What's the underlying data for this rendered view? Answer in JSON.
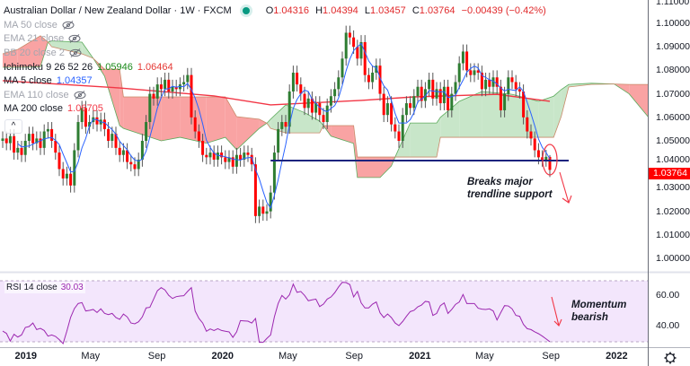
{
  "header": {
    "title": "Australian Dollar / New Zealand Dollar · 1W · FXCM",
    "ohlc": {
      "o_label": "O",
      "o": "1.04316",
      "h_label": "H",
      "h": "1.04394",
      "l_label": "L",
      "l": "1.03457",
      "c_label": "C",
      "c": "1.03764",
      "change": "−0.00439 (−0.42%)"
    }
  },
  "indicators": [
    {
      "name": "MA 50 close",
      "visible": false
    },
    {
      "name": "EMA 21 close",
      "visible": false
    },
    {
      "name": "BB 20 close 2",
      "visible": false
    },
    {
      "name": "Ichimoku 9 26 52 26",
      "visible": true,
      "values": [
        {
          "v": "1.05946",
          "color": "#1b8a1b"
        },
        {
          "v": "1.06464",
          "color": "#e53935"
        }
      ]
    },
    {
      "name": "MA 5 close",
      "visible": true,
      "values": [
        {
          "v": "1.04357",
          "color": "#2962ff"
        }
      ]
    },
    {
      "name": "EMA 110 close",
      "visible": false
    },
    {
      "name": "MA 200 close",
      "visible": true,
      "values": [
        {
          "v": "1.06705",
          "color": "#f23645"
        }
      ]
    }
  ],
  "collapse_label": "^",
  "price_axis": {
    "labels": [
      "1.11000",
      "1.10000",
      "1.09000",
      "1.08000",
      "1.07000",
      "1.06000",
      "1.05000",
      "1.04000",
      "1.03000",
      "1.02000",
      "1.01000",
      "1.00000"
    ],
    "current": "1.03764"
  },
  "rsi_axis": {
    "labels": [
      "60.00",
      "40.00"
    ]
  },
  "time_axis": [
    {
      "label": "2019",
      "date": "2019-01-01",
      "year": true
    },
    {
      "label": "May",
      "date": "2019-05-01"
    },
    {
      "label": "Sep",
      "date": "2019-09-01"
    },
    {
      "label": "2020",
      "date": "2020-01-01",
      "year": true
    },
    {
      "label": "May",
      "date": "2020-05-01"
    },
    {
      "label": "Sep",
      "date": "2020-09-01"
    },
    {
      "label": "2021",
      "date": "2021-01-01",
      "year": true
    },
    {
      "label": "May",
      "date": "2021-05-01"
    },
    {
      "label": "Sep",
      "date": "2021-09-01"
    },
    {
      "label": "2022",
      "date": "2022-01-01",
      "year": true
    }
  ],
  "rsi_legend": {
    "name": "RSI 14 close",
    "value": "30.03"
  },
  "annotations": {
    "trendline_note": [
      "Breaks major",
      "trendline support"
    ],
    "rsi_note": [
      "Momentum",
      "bearish"
    ]
  },
  "colors": {
    "up": "#2e7d32",
    "down": "#ff0000",
    "ma5": "#2962ff",
    "ma200": "#f23645",
    "cloud_bull": "#c8e6c9",
    "cloud_bear": "#f9a3a3",
    "trendline": "#1a237e",
    "rsi": "#9c27b0",
    "rsi_band": "#f3e6fc",
    "annotation": "#f23645"
  },
  "chart_data": [
    {
      "type": "candlestick",
      "symbol": "AUDNZD",
      "interval": "1W",
      "first_bar": "2018-11-19",
      "ylim": [
        0.995,
        1.111
      ],
      "close": [
        1.051,
        1.049,
        1.052,
        1.045,
        1.047,
        1.044,
        1.05,
        1.053,
        1.049,
        1.051,
        1.047,
        1.054,
        1.055,
        1.05,
        1.045,
        1.038,
        1.034,
        1.036,
        1.031,
        1.046,
        1.058,
        1.064,
        1.056,
        1.058,
        1.06,
        1.057,
        1.059,
        1.055,
        1.05,
        1.053,
        1.047,
        1.044,
        1.046,
        1.041,
        1.04,
        1.038,
        1.042,
        1.05,
        1.058,
        1.07,
        1.068,
        1.074,
        1.072,
        1.076,
        1.071,
        1.073,
        1.072,
        1.074,
        1.075,
        1.078,
        1.06,
        1.054,
        1.05,
        1.044,
        1.043,
        1.045,
        1.042,
        1.045,
        1.043,
        1.041,
        1.043,
        1.039,
        1.044,
        1.042,
        1.045,
        1.044,
        1.04,
        1.018,
        1.022,
        1.019,
        1.02,
        1.028,
        1.045,
        1.055,
        1.058,
        1.056,
        1.071,
        1.079,
        1.074,
        1.07,
        1.064,
        1.068,
        1.062,
        1.066,
        1.061,
        1.058,
        1.065,
        1.069,
        1.072,
        1.077,
        1.085,
        1.096,
        1.094,
        1.09,
        1.085,
        1.092,
        1.078,
        1.075,
        1.079,
        1.082,
        1.07,
        1.061,
        1.066,
        1.057,
        1.054,
        1.05,
        1.061,
        1.066,
        1.064,
        1.069,
        1.073,
        1.067,
        1.072,
        1.076,
        1.068,
        1.072,
        1.066,
        1.073,
        1.063,
        1.07,
        1.075,
        1.083,
        1.088,
        1.08,
        1.078,
        1.08,
        1.079,
        1.072,
        1.076,
        1.073,
        1.077,
        1.073,
        1.063,
        1.07,
        1.077,
        1.075,
        1.072,
        1.071,
        1.06,
        1.054,
        1.051,
        1.046,
        1.043,
        1.042,
        1.0432,
        1.03764
      ],
      "last_bar": {
        "open": 1.04316,
        "high": 1.04394,
        "low": 1.03457,
        "close": 1.03764
      },
      "ma200": [
        [
          "2018-11-19",
          1.0756
        ],
        [
          "2019-06-24",
          1.0725
        ],
        [
          "2019-12-16",
          1.0691
        ],
        [
          "2020-03-30",
          1.0653
        ],
        [
          "2020-09-14",
          1.0672
        ],
        [
          "2020-12-21",
          1.0687
        ],
        [
          "2021-05-24",
          1.0698
        ],
        [
          "2021-08-30",
          1.0668
        ]
      ],
      "ichimoku_cloud": [
        [
          "2018-11-19",
          1.0813,
          1.087
        ],
        [
          "2018-12-17",
          1.0813,
          1.0889
        ],
        [
          "2019-01-28",
          1.0815,
          1.0947
        ],
        [
          "2019-02-11",
          1.092,
          1.092
        ],
        [
          "2019-02-18",
          1.0925,
          1.09
        ],
        [
          "2019-04-15",
          1.092,
          1.087
        ],
        [
          "2019-05-06",
          1.0851,
          1.0851
        ],
        [
          "2019-05-27",
          1.0775,
          1.0805
        ],
        [
          "2019-06-24",
          1.0565,
          1.0805
        ],
        [
          "2019-07-01",
          1.0553,
          1.0687
        ],
        [
          "2019-09-09",
          1.05,
          1.0687
        ],
        [
          "2019-10-14",
          1.0515,
          1.0687
        ],
        [
          "2019-12-02",
          1.049,
          1.0687
        ],
        [
          "2020-01-06",
          1.0515,
          1.0687
        ],
        [
          "2020-01-27",
          1.0462,
          1.0603
        ],
        [
          "2020-03-09",
          1.0553,
          1.0592
        ],
        [
          "2020-03-23",
          1.0575,
          1.0575
        ],
        [
          "2020-03-30",
          1.0592,
          1.0553
        ],
        [
          "2020-04-27",
          1.0653,
          1.0534
        ],
        [
          "2020-06-01",
          1.062,
          1.0534
        ],
        [
          "2020-06-29",
          1.0584,
          1.0534
        ],
        [
          "2020-07-06",
          1.0565,
          1.0565
        ],
        [
          "2020-07-20",
          1.052,
          1.0565
        ],
        [
          "2020-08-31",
          1.0489,
          1.0565
        ],
        [
          "2020-09-07",
          1.0344,
          1.0431
        ],
        [
          "2020-10-19",
          1.0344,
          1.0431
        ],
        [
          "2020-11-09",
          1.0393,
          1.0431
        ],
        [
          "2020-11-16",
          1.0431,
          1.0431
        ],
        [
          "2020-12-14",
          1.0576,
          1.0431
        ],
        [
          "2021-02-01",
          1.0576,
          1.0431
        ],
        [
          "2021-02-08",
          1.06,
          1.0515
        ],
        [
          "2021-03-15",
          1.0668,
          1.0515
        ],
        [
          "2021-04-26",
          1.071,
          1.0515
        ],
        [
          "2021-06-21",
          1.0698,
          1.0515
        ],
        [
          "2021-08-09",
          1.0668,
          1.0515
        ],
        [
          "2021-09-06",
          1.069,
          1.0515
        ],
        [
          "2021-09-20",
          1.0718,
          1.0603
        ],
        [
          "2021-10-04",
          1.074,
          1.0729
        ],
        [
          "2021-11-15",
          1.0745,
          1.074
        ],
        [
          "2021-12-27",
          1.0742,
          1.0742
        ],
        [
          "2022-01-24",
          1.07,
          1.074
        ],
        [
          "2022-02-28",
          1.0603,
          1.074
        ]
      ],
      "trendline": {
        "from": "2020-03-30",
        "to": "2021-10-04",
        "price": 1.0416
      }
    },
    {
      "type": "line",
      "name": "RSI 14 close",
      "ylim": [
        25,
        75
      ],
      "bands": [
        30,
        70
      ],
      "values": [
        37.0,
        35.5,
        30.5,
        34.9,
        33.1,
        34.5,
        39.4,
        40.0,
        42.3,
        38.0,
        38.8,
        37.4,
        33.7,
        34.5,
        33.5,
        31.4,
        28.8,
        37.0,
        46.0,
        51.8,
        55.1,
        55.7,
        50.2,
        50.6,
        51.2,
        49.2,
        51.6,
        48.6,
        47.8,
        48.6,
        45.9,
        44.7,
        48.2,
        46.3,
        42.3,
        41.8,
        43.1,
        46.3,
        52.2,
        52.6,
        58.0,
        63.5,
        65.5,
        64.0,
        60.4,
        58.4,
        59.6,
        60.0,
        60.2,
        63.0,
        65.5,
        50.2,
        45.3,
        42.3,
        36.9,
        38.4,
        37.4,
        38.6,
        37.4,
        36.9,
        36.5,
        32.9,
        36.5,
        43.9,
        43.7,
        43.5,
        42.3,
        45.3,
        29.6,
        29.6,
        32.2,
        34.5,
        46.3,
        55.1,
        60.4,
        58.0,
        60.8,
        67.8,
        62.4,
        63.0,
        60.4,
        56.9,
        57.5,
        58.0,
        53.1,
        54.7,
        58.0,
        59.4,
        62.2,
        65.9,
        69.0,
        68.8,
        67.5,
        59.4,
        63.0,
        55.5,
        52.2,
        52.2,
        54.7,
        56.1,
        49.0,
        45.9,
        48.2,
        45.9,
        42.3,
        40.6,
        43.3,
        46.7,
        49.8,
        50.6,
        52.9,
        54.1,
        56.5,
        56.1,
        47.3,
        48.6,
        53.7,
        55.5,
        48.6,
        51.2,
        54.5,
        56.1,
        61.0,
        55.1,
        55.1,
        55.1,
        52.0,
        51.4,
        51.2,
        51.6,
        50.2,
        44.3,
        49.2,
        53.7,
        53.5,
        51.6,
        47.3,
        46.7,
        41.4,
        38.6,
        38.0,
        36.5,
        35.3,
        33.7,
        31.9,
        30.03
      ]
    }
  ]
}
